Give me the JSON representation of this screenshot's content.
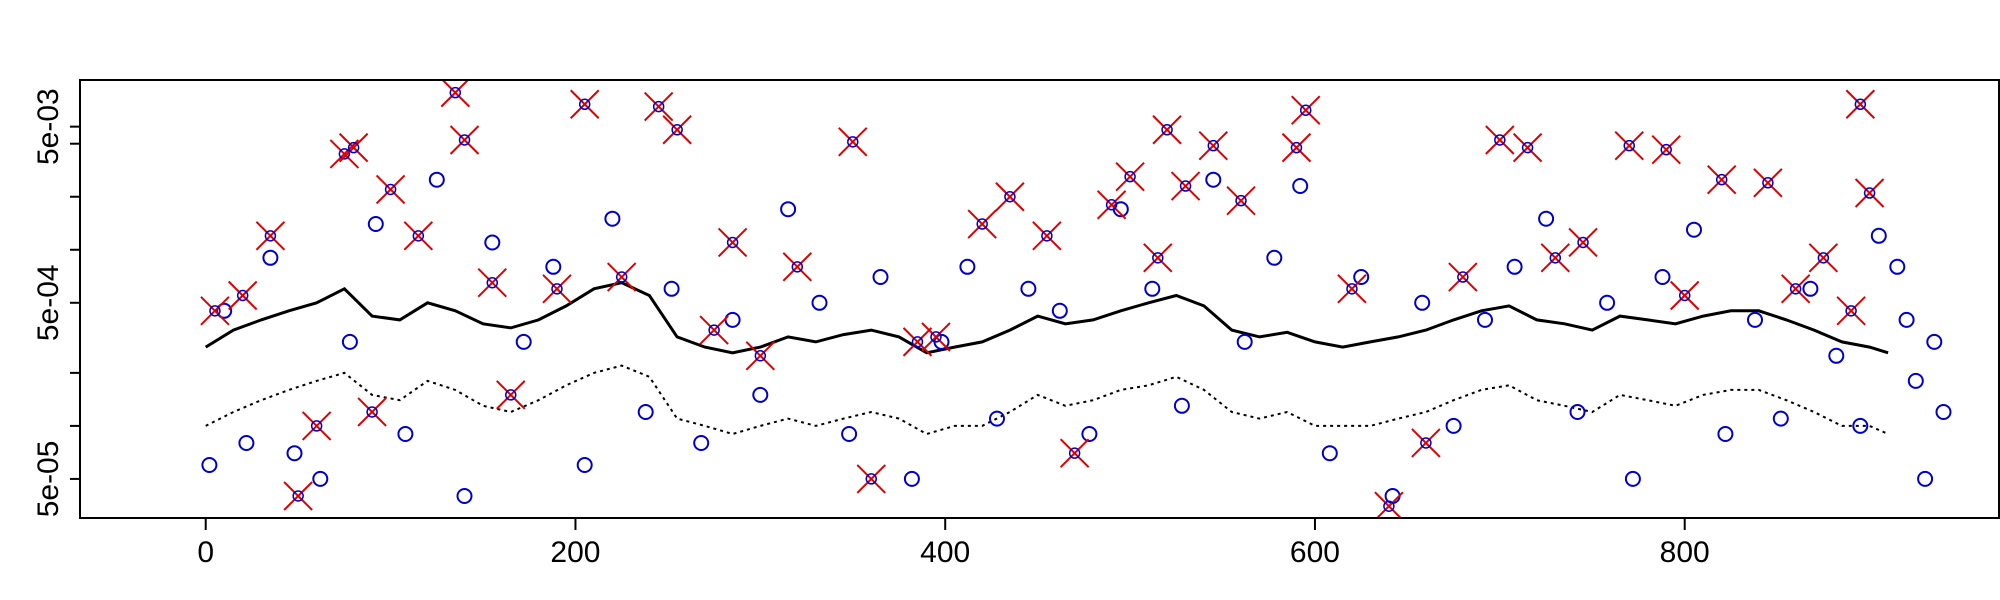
{
  "chart_data": {
    "type": "scatter",
    "title": "",
    "xlabel": "",
    "ylabel": "",
    "xlim": [
      -68,
      970
    ],
    "ylim": [
      3e-05,
      0.0092
    ],
    "y_scale": "log",
    "grid": false,
    "legend": "none",
    "x_ticks": [
      0,
      200,
      400,
      600,
      800
    ],
    "x_tick_labels": [
      "0",
      "200",
      "400",
      "600",
      "800"
    ],
    "y_label_ticks": [
      5e-05,
      0.0005,
      0.005
    ],
    "y_tick_labels": [
      "5e-05",
      "5e-04",
      "5e-03"
    ],
    "y_minor_ticks": [
      0.0001,
      0.0002,
      0.001,
      0.002,
      0.004
    ],
    "series": [
      {
        "kind": "line",
        "style": "solid",
        "color": "#000000",
        "x": [
          0,
          15,
          30,
          45,
          60,
          75,
          90,
          105,
          120,
          135,
          150,
          165,
          180,
          195,
          210,
          225,
          240,
          255,
          270,
          285,
          300,
          315,
          330,
          345,
          360,
          375,
          390,
          405,
          420,
          435,
          450,
          465,
          480,
          495,
          510,
          525,
          540,
          555,
          570,
          585,
          600,
          615,
          630,
          645,
          660,
          675,
          690,
          705,
          720,
          735,
          750,
          765,
          780,
          795,
          810,
          825,
          840,
          855,
          870,
          885,
          900,
          910
        ],
        "y": [
          0.00028,
          0.00035,
          0.0004,
          0.00045,
          0.0005,
          0.0006,
          0.00042,
          0.0004,
          0.0005,
          0.00045,
          0.00038,
          0.00036,
          0.0004,
          0.00048,
          0.0006,
          0.00065,
          0.00055,
          0.00032,
          0.00028,
          0.00026,
          0.00028,
          0.00032,
          0.0003,
          0.00033,
          0.00035,
          0.00032,
          0.00026,
          0.00028,
          0.0003,
          0.00035,
          0.00042,
          0.00038,
          0.0004,
          0.00045,
          0.0005,
          0.00055,
          0.00048,
          0.00035,
          0.00032,
          0.00034,
          0.0003,
          0.00028,
          0.0003,
          0.00032,
          0.00035,
          0.0004,
          0.00045,
          0.00048,
          0.0004,
          0.00038,
          0.00035,
          0.00042,
          0.0004,
          0.00038,
          0.00042,
          0.00045,
          0.00045,
          0.0004,
          0.00035,
          0.0003,
          0.00028,
          0.00026
        ]
      },
      {
        "kind": "line",
        "style": "dotted",
        "color": "#000000",
        "x": [
          0,
          15,
          30,
          45,
          60,
          75,
          90,
          105,
          120,
          135,
          150,
          165,
          180,
          195,
          210,
          225,
          240,
          255,
          270,
          285,
          300,
          315,
          330,
          345,
          360,
          375,
          390,
          405,
          420,
          435,
          450,
          465,
          480,
          495,
          510,
          525,
          540,
          555,
          570,
          585,
          600,
          615,
          630,
          645,
          660,
          675,
          690,
          705,
          720,
          735,
          750,
          765,
          780,
          795,
          810,
          825,
          840,
          855,
          870,
          885,
          900,
          910
        ],
        "y": [
          0.0001,
          0.00012,
          0.00014,
          0.00016,
          0.00018,
          0.0002,
          0.00015,
          0.00014,
          0.00018,
          0.00016,
          0.00013,
          0.00012,
          0.00014,
          0.00017,
          0.0002,
          0.00022,
          0.00019,
          0.00011,
          0.0001,
          9e-05,
          0.0001,
          0.00011,
          0.0001,
          0.00011,
          0.00012,
          0.00011,
          9e-05,
          0.0001,
          0.0001,
          0.00012,
          0.00015,
          0.00013,
          0.00014,
          0.00016,
          0.00017,
          0.00019,
          0.00016,
          0.00012,
          0.00011,
          0.00012,
          0.0001,
          0.0001,
          0.0001,
          0.00011,
          0.00012,
          0.00014,
          0.00016,
          0.00017,
          0.00014,
          0.00013,
          0.00012,
          0.00015,
          0.00014,
          0.00013,
          0.00015,
          0.00016,
          0.00016,
          0.00014,
          0.00012,
          0.0001,
          0.0001,
          9e-05
        ]
      },
      {
        "name": "",
        "kind": "points",
        "marker": "circle",
        "color": "#0000cc",
        "x": [
          2,
          10,
          22,
          35,
          48,
          62,
          78,
          92,
          108,
          125,
          140,
          155,
          172,
          188,
          205,
          220,
          238,
          252,
          268,
          285,
          300,
          315,
          332,
          348,
          365,
          382,
          398,
          412,
          428,
          445,
          462,
          478,
          495,
          512,
          528,
          545,
          562,
          578,
          592,
          608,
          625,
          642,
          658,
          675,
          692,
          708,
          725,
          742,
          758,
          772,
          788,
          805,
          822,
          838,
          852,
          868,
          882,
          895,
          905,
          915,
          920,
          925,
          930,
          935,
          940
        ],
        "y": [
          6e-05,
          0.00045,
          8e-05,
          0.0009,
          7e-05,
          5e-05,
          0.0003,
          0.0014,
          9e-05,
          0.0025,
          4e-05,
          0.0011,
          0.0003,
          0.0008,
          6e-05,
          0.0015,
          0.00012,
          0.0006,
          8e-05,
          0.0004,
          0.00015,
          0.0017,
          0.0005,
          9e-05,
          0.0007,
          5e-05,
          0.0003,
          0.0008,
          0.00011,
          0.0006,
          0.00045,
          9e-05,
          0.0017,
          0.0006,
          0.00013,
          0.0025,
          0.0003,
          0.0009,
          0.0023,
          7e-05,
          0.0007,
          4e-05,
          0.0005,
          0.0001,
          0.0004,
          0.0008,
          0.0015,
          0.00012,
          0.0005,
          5e-05,
          0.0007,
          0.0013,
          9e-05,
          0.0004,
          0.00011,
          0.0006,
          0.00025,
          0.0001,
          0.0012,
          0.0008,
          0.0004,
          0.00018,
          5e-05,
          0.0003,
          0.00012
        ]
      },
      {
        "name": "",
        "kind": "points",
        "marker": "x",
        "color": "#dd0000",
        "x": [
          5,
          20,
          35,
          50,
          60,
          75,
          80,
          90,
          100,
          115,
          135,
          140,
          155,
          165,
          190,
          205,
          225,
          245,
          255,
          275,
          285,
          300,
          320,
          350,
          360,
          385,
          395,
          420,
          435,
          455,
          470,
          490,
          500,
          515,
          520,
          530,
          545,
          560,
          590,
          595,
          620,
          640,
          660,
          680,
          700,
          715,
          730,
          745,
          770,
          790,
          800,
          820,
          845,
          860,
          875,
          890,
          895,
          900
        ],
        "y": [
          0.00045,
          0.00055,
          0.0012,
          4e-05,
          0.0001,
          0.0035,
          0.0038,
          0.00012,
          0.0022,
          0.0012,
          0.0078,
          0.0042,
          0.00065,
          0.00015,
          0.0006,
          0.0067,
          0.0007,
          0.0065,
          0.0048,
          0.00035,
          0.0011,
          0.00025,
          0.0008,
          0.0041,
          5e-05,
          0.0003,
          0.00032,
          0.0014,
          0.002,
          0.0012,
          7e-05,
          0.0018,
          0.0026,
          0.0009,
          0.0048,
          0.0023,
          0.0039,
          0.0019,
          0.0038,
          0.0062,
          0.0006,
          3.5e-05,
          8e-05,
          0.0007,
          0.0042,
          0.0038,
          0.0009,
          0.0011,
          0.0039,
          0.0037,
          0.00055,
          0.0025,
          0.0024,
          0.0006,
          0.0009,
          0.00045,
          0.0067,
          0.0021
        ]
      }
    ]
  }
}
